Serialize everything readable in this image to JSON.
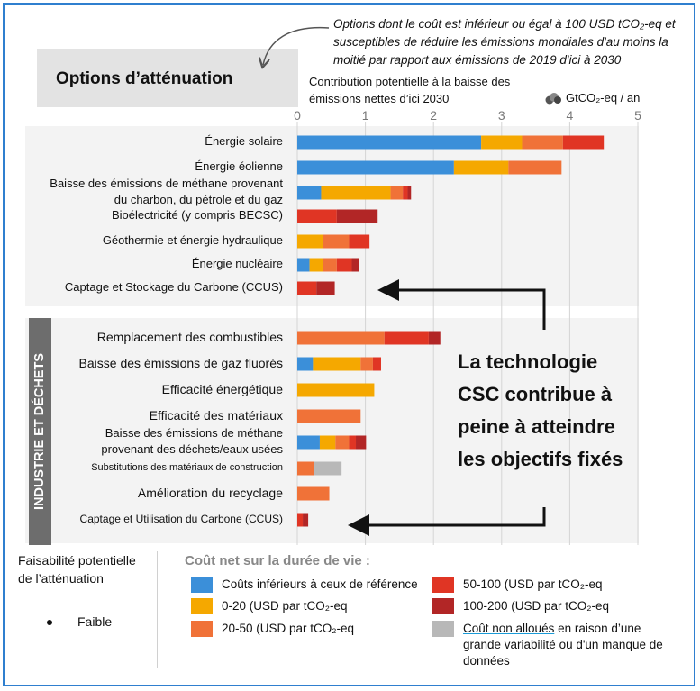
{
  "title": "Options d’atténuation",
  "note": "Options dont le coût est inférieur ou égal à 100 USD tCO₂-eq et susceptibles de réduire les émissions mondiales d'au moins la moitié par rapport aux émissions de 2019 d'ici à 2030",
  "contribution_label": "Contribution potentielle à la baisse des émissions nettes d’ici 2030",
  "unit_label": "GtCO₂-eq / an",
  "section_label": "INDUSTRIE  ET DÉCHETS",
  "callout": "La technologie CSC contribue à peine à atteindre les objectifs fixés",
  "feasibility": {
    "title": "Faisabilité potentielle de l’atténuation",
    "item": "Faible"
  },
  "legend_title": "Coût net sur la durée de vie :",
  "colors": {
    "ref": "#3b8fd9",
    "c0_20": "#f5a800",
    "c20_50": "#f07238",
    "c50_100": "#e03524",
    "c100_200": "#b22626",
    "na": "#b8b8b8",
    "bg_band": "#f3f3f3",
    "grid": "#d4d4d4"
  },
  "chart_data": {
    "type": "bar",
    "orientation": "horizontal",
    "stacked": true,
    "xlim": [
      0,
      5
    ],
    "xticks": [
      "0",
      "1",
      "2",
      "3",
      "4",
      "5"
    ],
    "cost_classes": [
      {
        "key": "ref",
        "label": "Coûts inférieurs à ceux de référence"
      },
      {
        "key": "c0_20",
        "label": "0-20 (USD par tCO₂-eq"
      },
      {
        "key": "c20_50",
        "label": "20-50 (USD par tCO₂-eq"
      },
      {
        "key": "c50_100",
        "label": "50-100 (USD par tCO₂-eq"
      },
      {
        "key": "c100_200",
        "label": "100-200 (USD par tCO₂-eq"
      },
      {
        "key": "na",
        "label_link": "Coût non alloués",
        "label_rest": " en raison d’une grande variabilité ou d'un manque de données"
      }
    ],
    "groups": [
      {
        "name": "",
        "categories": [
          {
            "label": "Énergie solaire",
            "values": {
              "ref": 2.7,
              "c0_20": 0.6,
              "c20_50": 0.6,
              "c50_100": 0.6,
              "c100_200": 0,
              "na": 0
            }
          },
          {
            "label": "Énergie éolienne",
            "values": {
              "ref": 2.3,
              "c0_20": 0.8,
              "c20_50": 0.78,
              "c50_100": 0,
              "c100_200": 0,
              "na": 0
            }
          },
          {
            "label": "Baisse des émissions de méthane provenant\ndu charbon, du pétrole et du gaz",
            "values": {
              "ref": 0.35,
              "c0_20": 1.02,
              "c20_50": 0.18,
              "c50_100": 0.07,
              "c100_200": 0.05,
              "na": 0
            }
          },
          {
            "label": "Bioélectricité (y compris BECSC)",
            "values": {
              "ref": 0,
              "c0_20": 0,
              "c20_50": 0,
              "c50_100": 0.58,
              "c100_200": 0.6,
              "na": 0
            }
          },
          {
            "label": "Géothermie et énergie hydraulique",
            "values": {
              "ref": 0,
              "c0_20": 0.38,
              "c20_50": 0.38,
              "c50_100": 0.3,
              "c100_200": 0,
              "na": 0
            }
          },
          {
            "label": "Énergie nucléaire",
            "values": {
              "ref": 0.18,
              "c0_20": 0.2,
              "c20_50": 0.2,
              "c50_100": 0.22,
              "c100_200": 0.1,
              "na": 0
            }
          },
          {
            "label": "Captage et Stockage du Carbone (CCUS)",
            "values": {
              "ref": 0,
              "c0_20": 0,
              "c20_50": 0,
              "c50_100": 0.28,
              "c100_200": 0.27,
              "na": 0
            }
          }
        ]
      },
      {
        "name": "INDUSTRIE  ET DÉCHETS",
        "categories": [
          {
            "label": "Remplacement des combustibles",
            "values": {
              "ref": 0,
              "c0_20": 0,
              "c20_50": 1.28,
              "c50_100": 0.65,
              "c100_200": 0.17,
              "na": 0
            }
          },
          {
            "label": "Baisse des émissions de gaz fluorés",
            "values": {
              "ref": 0.23,
              "c0_20": 0.7,
              "c20_50": 0.18,
              "c50_100": 0.12,
              "c100_200": 0,
              "na": 0
            }
          },
          {
            "label": "Efficacité énergétique",
            "values": {
              "ref": 0,
              "c0_20": 1.13,
              "c20_50": 0,
              "c50_100": 0,
              "c100_200": 0,
              "na": 0
            }
          },
          {
            "label": "Efficacité des matériaux",
            "values": {
              "ref": 0,
              "c0_20": 0,
              "c20_50": 0.93,
              "c50_100": 0,
              "c100_200": 0,
              "na": 0
            }
          },
          {
            "label": "Baisse des émissions de méthane\nprovenant des déchets/eaux usées",
            "values": {
              "ref": 0.33,
              "c0_20": 0.23,
              "c20_50": 0.2,
              "c50_100": 0.1,
              "c100_200": 0.15,
              "na": 0
            }
          },
          {
            "label": "Substitutions des matériaux de construction",
            "values": {
              "ref": 0,
              "c0_20": 0,
              "c20_50": 0.25,
              "c50_100": 0,
              "c100_200": 0,
              "na": 0.4
            }
          },
          {
            "label": "Amélioration du recyclage",
            "values": {
              "ref": 0,
              "c0_20": 0,
              "c20_50": 0.47,
              "c50_100": 0,
              "c100_200": 0,
              "na": 0
            }
          },
          {
            "label": "Captage et Utilisation du Carbone (CCUS)",
            "values": {
              "ref": 0,
              "c0_20": 0,
              "c20_50": 0,
              "c50_100": 0.08,
              "c100_200": 0.08,
              "na": 0
            }
          }
        ]
      }
    ]
  }
}
